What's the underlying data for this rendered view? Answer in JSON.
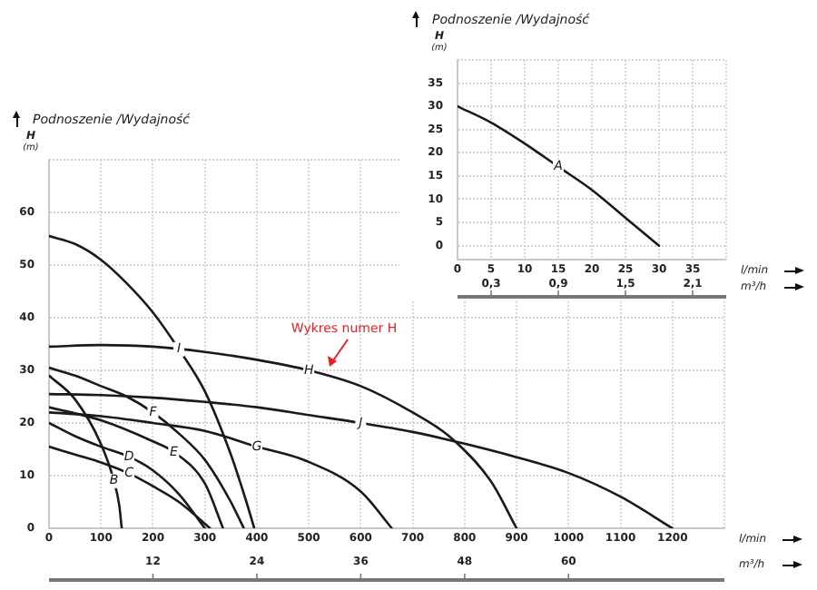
{
  "chart_data": [
    {
      "type": "line",
      "title": "Podnoszenie /Wydajność",
      "ylabel": "H (m)",
      "xlabel": "l/min",
      "x2label": "m³/h",
      "xlim": [
        0,
        40
      ],
      "xticks": [
        0,
        5,
        10,
        15,
        20,
        25,
        30,
        35
      ],
      "x2lim": [
        0,
        2.4
      ],
      "x2ticks": [
        {
          "value": 0.3,
          "label": "0,3"
        },
        {
          "value": 0.9,
          "label": "0,9"
        },
        {
          "value": 1.5,
          "label": "1,5"
        },
        {
          "value": 2.1,
          "label": "2,1"
        }
      ],
      "ylim": [
        -3,
        40
      ],
      "yticks": [
        0,
        5,
        10,
        15,
        20,
        25,
        30,
        35
      ],
      "grid": true,
      "marker": "none",
      "line_style": "solid",
      "series": [
        {
          "name": "A",
          "color": "#1a1a1a",
          "x": [
            0,
            5,
            10,
            15,
            20,
            25,
            30
          ],
          "values": [
            30,
            26.5,
            22,
            17,
            12,
            6,
            0
          ]
        }
      ]
    },
    {
      "type": "line",
      "ylabel": "H (m)",
      "title": "Podnoszenie /Wydajność",
      "xlabel": "l/min",
      "x2label": "m³/h",
      "xlim": [
        0,
        1300
      ],
      "xticks": [
        0,
        100,
        200,
        300,
        400,
        500,
        600,
        700,
        800,
        900,
        1000,
        1100,
        1200
      ],
      "x2lim": [
        0,
        78
      ],
      "x2ticks": [
        12,
        24,
        36,
        48,
        60
      ],
      "ylim": [
        0,
        70
      ],
      "yticks": [
        0,
        10,
        20,
        30,
        40,
        50,
        60
      ],
      "grid": true,
      "marker": "none",
      "line_style": "solid",
      "annotations": [
        {
          "text": "Wykres numer H",
          "x": 540,
          "y": 30
        }
      ],
      "series": [
        {
          "name": "B",
          "color": "#1a1a1a",
          "x": [
            0,
            50,
            100,
            125,
            135,
            140
          ],
          "values": [
            29,
            24.5,
            16,
            9,
            4.5,
            0
          ]
        },
        {
          "name": "C",
          "color": "#1a1a1a",
          "x": [
            0,
            50,
            100,
            154,
            200,
            250,
            310
          ],
          "values": [
            15.5,
            14,
            12.5,
            10.4,
            8,
            5,
            0
          ]
        },
        {
          "name": "D",
          "color": "#1a1a1a",
          "x": [
            0,
            50,
            100,
            154,
            200,
            250,
            300
          ],
          "values": [
            20,
            17.5,
            15.5,
            13.6,
            11,
            6.5,
            0
          ]
        },
        {
          "name": "E",
          "color": "#1a1a1a",
          "x": [
            0,
            100,
            200,
            240,
            300,
            335
          ],
          "values": [
            23,
            20.5,
            16.5,
            14.5,
            8.5,
            0
          ]
        },
        {
          "name": "F",
          "color": "#1a1a1a",
          "x": [
            0,
            50,
            100,
            150,
            200,
            250,
            300,
            350,
            375
          ],
          "values": [
            30.5,
            29,
            27,
            25,
            22,
            18,
            13,
            5,
            0
          ]
        },
        {
          "name": "G",
          "color": "#1a1a1a",
          "x": [
            0,
            100,
            200,
            300,
            400,
            495,
            600,
            660
          ],
          "values": [
            22,
            21.3,
            20,
            18.5,
            15.5,
            12.8,
            7,
            0
          ]
        },
        {
          "name": "H",
          "color": "#1a1a1a",
          "x": [
            0,
            100,
            200,
            300,
            400,
            500,
            600,
            700,
            770,
            850,
            900
          ],
          "values": [
            34.5,
            34.8,
            34.5,
            33.5,
            32,
            30,
            27,
            22,
            17.5,
            9,
            0
          ]
        },
        {
          "name": "I",
          "color": "#1a1a1a",
          "x": [
            0,
            50,
            100,
            150,
            200,
            250,
            300,
            350,
            380,
            395
          ],
          "values": [
            55.5,
            54,
            51,
            46.5,
            41,
            34,
            26,
            14,
            5,
            0
          ]
        },
        {
          "name": "J",
          "color": "#1a1a1a",
          "x": [
            0,
            100,
            200,
            300,
            400,
            500,
            600,
            700,
            760,
            900,
            1000,
            1100,
            1200
          ],
          "values": [
            25.5,
            25.3,
            24.8,
            24,
            23,
            21.5,
            20,
            18.3,
            17,
            13.5,
            10.5,
            6,
            0
          ]
        }
      ]
    }
  ]
}
